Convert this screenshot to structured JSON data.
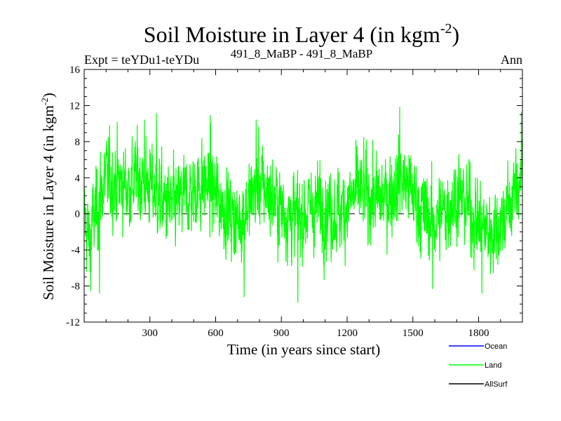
{
  "chart_data": {
    "type": "line",
    "title": "Soil Moisture in Layer 4 (in kgm",
    "title_sup": "-2",
    "title_close": ")",
    "subtitle_left": "Expt = teYDu1-teYDu",
    "subtitle_center": "491_8_MaBP - 491_8_MaBP",
    "subtitle_right": "Ann",
    "xlabel": "Time (in years since start)",
    "ylabel": "Soil Moisture in Layer 4 (in kgm",
    "ylabel_sup": "-2",
    "ylabel_close": ")",
    "xlim": [
      0,
      2000
    ],
    "ylim": [
      -12,
      16
    ],
    "x_ticks": [
      300,
      600,
      900,
      1200,
      1500,
      1800
    ],
    "x_tick_labels": [
      "300",
      "600",
      "900",
      "1200",
      "1500",
      "1800"
    ],
    "y_ticks": [
      -12,
      -8,
      -4,
      0,
      4,
      8,
      12,
      16
    ],
    "y_tick_labels": [
      "-12",
      "-8",
      "-4",
      "0",
      "4",
      "8",
      "12",
      "16"
    ],
    "reference_line": 0,
    "series": [
      {
        "name": "Land",
        "color": "#00ff00",
        "n_points": 2000,
        "x_start": 1,
        "x_step": 1,
        "anchors": [
          {
            "x": 0,
            "y": 0
          },
          {
            "x": 20,
            "y": -3
          },
          {
            "x": 40,
            "y": -1
          },
          {
            "x": 60,
            "y": 1
          },
          {
            "x": 80,
            "y": 2.5
          },
          {
            "x": 100,
            "y": 4
          },
          {
            "x": 150,
            "y": 3.5
          },
          {
            "x": 200,
            "y": 3
          },
          {
            "x": 250,
            "y": 4
          },
          {
            "x": 300,
            "y": 3
          },
          {
            "x": 350,
            "y": 1.5
          },
          {
            "x": 400,
            "y": 0.5
          },
          {
            "x": 450,
            "y": 1.5
          },
          {
            "x": 500,
            "y": 2.5
          },
          {
            "x": 550,
            "y": 3.5
          },
          {
            "x": 600,
            "y": 2
          },
          {
            "x": 650,
            "y": 0.5
          },
          {
            "x": 700,
            "y": -1
          },
          {
            "x": 750,
            "y": 1
          },
          {
            "x": 800,
            "y": 3.5
          },
          {
            "x": 850,
            "y": 2
          },
          {
            "x": 900,
            "y": 0.5
          },
          {
            "x": 950,
            "y": -0.5
          },
          {
            "x": 1000,
            "y": 0
          },
          {
            "x": 1050,
            "y": 1
          },
          {
            "x": 1100,
            "y": 0.5
          },
          {
            "x": 1150,
            "y": 0
          },
          {
            "x": 1200,
            "y": 1
          },
          {
            "x": 1250,
            "y": 2.5
          },
          {
            "x": 1300,
            "y": 2
          },
          {
            "x": 1350,
            "y": 1.5
          },
          {
            "x": 1400,
            "y": 2.5
          },
          {
            "x": 1450,
            "y": 4
          },
          {
            "x": 1500,
            "y": 2
          },
          {
            "x": 1550,
            "y": 0
          },
          {
            "x": 1600,
            "y": -1
          },
          {
            "x": 1650,
            "y": 0.5
          },
          {
            "x": 1700,
            "y": 2
          },
          {
            "x": 1750,
            "y": 1
          },
          {
            "x": 1800,
            "y": -1
          },
          {
            "x": 1850,
            "y": -2
          },
          {
            "x": 1900,
            "y": -1
          },
          {
            "x": 1950,
            "y": 1.5
          },
          {
            "x": 1990,
            "y": 4
          },
          {
            "x": 2000,
            "y": 6
          }
        ],
        "peaks": [
          {
            "x": 30,
            "y": -8.5
          },
          {
            "x": 70,
            "y": -8.8
          },
          {
            "x": 275,
            "y": 10.4
          },
          {
            "x": 330,
            "y": 11.1
          },
          {
            "x": 575,
            "y": 10.9
          },
          {
            "x": 730,
            "y": -9.2
          },
          {
            "x": 785,
            "y": 10.4
          },
          {
            "x": 975,
            "y": -9.8
          },
          {
            "x": 1440,
            "y": 11.8
          },
          {
            "x": 1590,
            "y": -8.3
          },
          {
            "x": 1815,
            "y": -8.8
          },
          {
            "x": 1995,
            "y": 11.3
          }
        ],
        "y_min": -9.8,
        "y_max": 11.8
      },
      {
        "name": "Ocean",
        "color": "#0000ff"
      },
      {
        "name": "AllSurf",
        "color": "#000000"
      }
    ],
    "legend": [
      "Ocean",
      "Land",
      "AllSurf"
    ],
    "legend_position": "bottom-right"
  }
}
